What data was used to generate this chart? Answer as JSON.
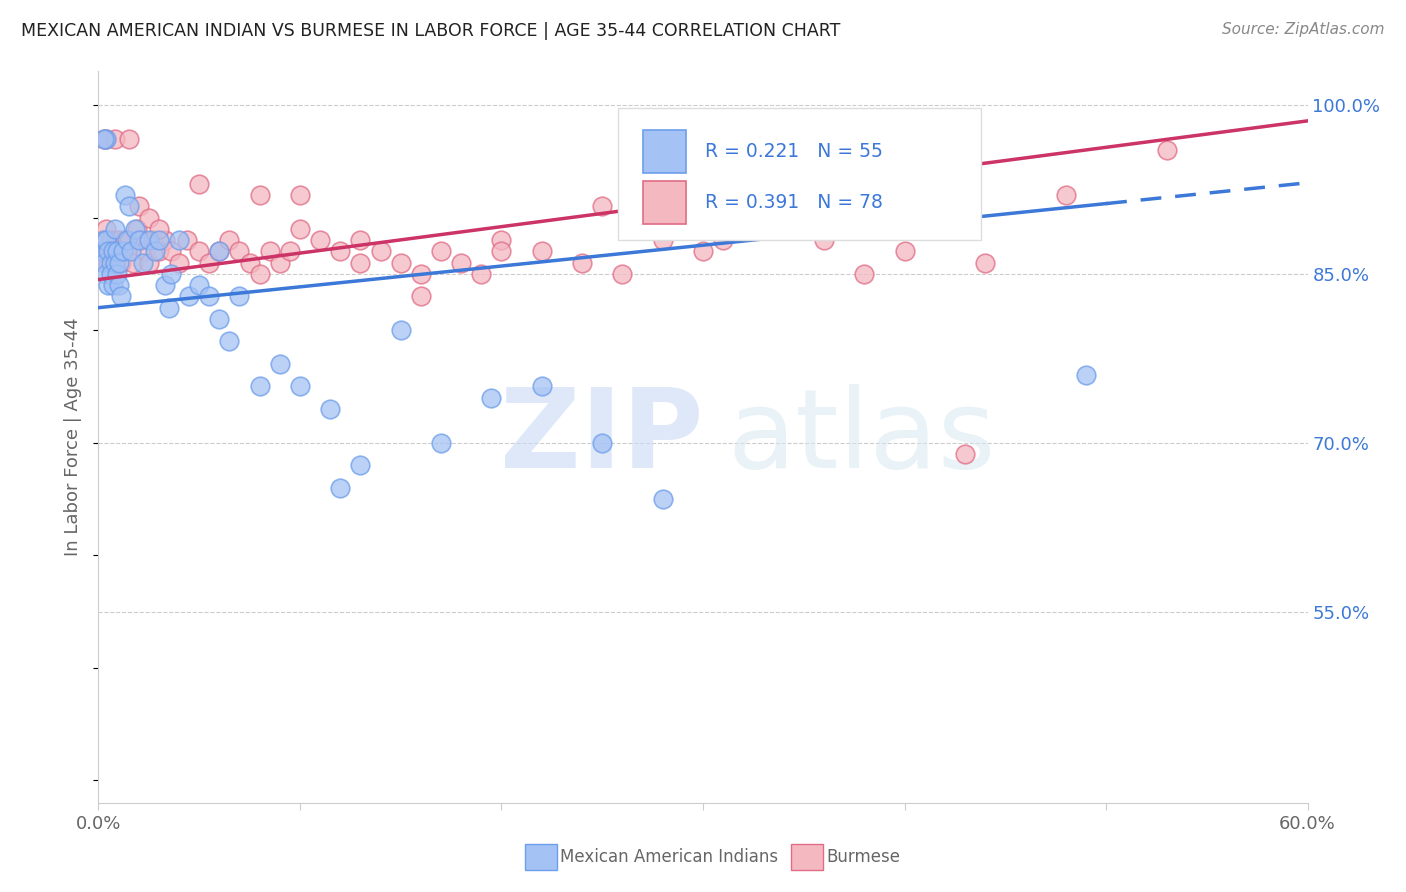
{
  "title": "MEXICAN AMERICAN INDIAN VS BURMESE IN LABOR FORCE | AGE 35-44 CORRELATION CHART",
  "source": "Source: ZipAtlas.com",
  "ylabel": "In Labor Force | Age 35-44",
  "xlim": [
    0.0,
    0.6
  ],
  "ylim": [
    0.38,
    1.03
  ],
  "yticks_right": [
    0.55,
    0.7,
    0.85,
    1.0
  ],
  "ytick_labels_right": [
    "55.0%",
    "70.0%",
    "85.0%",
    "100.0%"
  ],
  "blue_color": "#a4c2f4",
  "pink_color": "#f4b8c1",
  "blue_edge_color": "#6d9eeb",
  "pink_edge_color": "#e06c85",
  "blue_line_color": "#3c78d8",
  "pink_line_color": "#cc3366",
  "text_blue": "#3c78d8",
  "text_color": "#666666",
  "grid_color": "#cccccc",
  "blue_intercept": 0.82,
  "blue_slope": 0.185,
  "pink_intercept": 0.845,
  "pink_slope": 0.235,
  "blue_x": [
    0.002,
    0.003,
    0.003,
    0.004,
    0.004,
    0.005,
    0.005,
    0.006,
    0.006,
    0.007,
    0.007,
    0.008,
    0.008,
    0.009,
    0.009,
    0.01,
    0.01,
    0.011,
    0.012,
    0.013,
    0.014,
    0.015,
    0.016,
    0.018,
    0.02,
    0.022,
    0.025,
    0.028,
    0.03,
    0.033,
    0.036,
    0.04,
    0.045,
    0.05,
    0.055,
    0.06,
    0.065,
    0.07,
    0.08,
    0.09,
    0.1,
    0.115,
    0.13,
    0.15,
    0.17,
    0.195,
    0.22,
    0.25,
    0.28,
    0.49,
    0.004,
    0.003,
    0.035,
    0.06,
    0.12
  ],
  "blue_y": [
    0.87,
    0.88,
    0.86,
    0.88,
    0.85,
    0.87,
    0.84,
    0.86,
    0.85,
    0.87,
    0.84,
    0.89,
    0.86,
    0.87,
    0.85,
    0.86,
    0.84,
    0.83,
    0.87,
    0.92,
    0.88,
    0.91,
    0.87,
    0.89,
    0.88,
    0.86,
    0.88,
    0.87,
    0.88,
    0.84,
    0.85,
    0.88,
    0.83,
    0.84,
    0.83,
    0.87,
    0.79,
    0.83,
    0.75,
    0.77,
    0.75,
    0.73,
    0.68,
    0.8,
    0.7,
    0.74,
    0.75,
    0.7,
    0.65,
    0.76,
    0.97,
    0.97,
    0.82,
    0.81,
    0.66
  ],
  "pink_x": [
    0.002,
    0.003,
    0.004,
    0.005,
    0.005,
    0.006,
    0.006,
    0.007,
    0.008,
    0.008,
    0.009,
    0.01,
    0.011,
    0.012,
    0.013,
    0.014,
    0.015,
    0.017,
    0.019,
    0.021,
    0.023,
    0.025,
    0.027,
    0.03,
    0.033,
    0.036,
    0.04,
    0.044,
    0.05,
    0.055,
    0.06,
    0.065,
    0.07,
    0.075,
    0.08,
    0.085,
    0.09,
    0.095,
    0.1,
    0.11,
    0.12,
    0.13,
    0.14,
    0.15,
    0.16,
    0.17,
    0.18,
    0.19,
    0.2,
    0.22,
    0.24,
    0.26,
    0.28,
    0.3,
    0.33,
    0.36,
    0.4,
    0.44,
    0.48,
    0.53,
    0.003,
    0.004,
    0.008,
    0.015,
    0.02,
    0.025,
    0.03,
    0.05,
    0.08,
    0.1,
    0.13,
    0.16,
    0.2,
    0.25,
    0.31,
    0.38,
    0.43
  ],
  "pink_y": [
    0.88,
    0.87,
    0.89,
    0.87,
    0.86,
    0.88,
    0.87,
    0.86,
    0.87,
    0.86,
    0.87,
    0.88,
    0.86,
    0.87,
    0.88,
    0.87,
    0.88,
    0.86,
    0.89,
    0.88,
    0.87,
    0.86,
    0.88,
    0.87,
    0.88,
    0.87,
    0.86,
    0.88,
    0.87,
    0.86,
    0.87,
    0.88,
    0.87,
    0.86,
    0.85,
    0.87,
    0.86,
    0.87,
    0.89,
    0.88,
    0.87,
    0.86,
    0.87,
    0.86,
    0.85,
    0.87,
    0.86,
    0.85,
    0.88,
    0.87,
    0.86,
    0.85,
    0.88,
    0.87,
    0.89,
    0.88,
    0.87,
    0.86,
    0.92,
    0.96,
    0.97,
    0.97,
    0.97,
    0.97,
    0.91,
    0.9,
    0.89,
    0.93,
    0.92,
    0.92,
    0.88,
    0.83,
    0.87,
    0.91,
    0.88,
    0.85,
    0.69
  ]
}
